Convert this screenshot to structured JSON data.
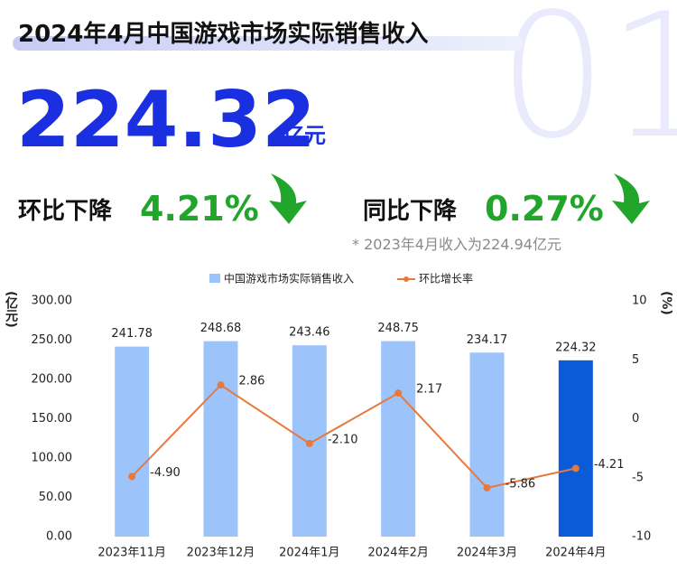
{
  "header": {
    "title": "2024年4月中国游戏市场实际销售收入",
    "big_number": "224.32",
    "unit": "亿元",
    "mom_label": "环比下降",
    "mom_value": "4.21%",
    "yoy_label": "同比下降",
    "yoy_value": "0.27%",
    "note": "* 2023年4月收入为224.94亿元",
    "watermark": "01"
  },
  "chart_data": {
    "type": "bar-line",
    "categories": [
      "2023年11月",
      "2023年12月",
      "2024年1月",
      "2024年2月",
      "2024年3月",
      "2024年4月"
    ],
    "series": [
      {
        "name": "中国游戏市场实际销售收入",
        "color": "#9dc3fb",
        "colors": [
          "#9dc3fb",
          "#9dc3fb",
          "#9dc3fb",
          "#9dc3fb",
          "#9dc3fb",
          "#0b5bd9"
        ],
        "values": [
          241.78,
          248.68,
          243.46,
          248.75,
          234.17,
          224.32
        ]
      },
      {
        "name": "环比增长率",
        "color": "#e8793c",
        "axis": "y2",
        "values": [
          -4.9,
          2.86,
          -2.1,
          2.17,
          -5.86,
          -4.21
        ],
        "value_labels": [
          "-4.90",
          "2.86",
          "-2.10",
          "2.17",
          "-5.86",
          "-4.21"
        ]
      }
    ],
    "ylabel": "(亿元)",
    "y2label": "(%)",
    "ylim": [
      0,
      300
    ],
    "yticks": [
      {
        "value": 0,
        "label": "0.00"
      },
      {
        "value": 50,
        "label": "50.00"
      },
      {
        "value": 100,
        "label": "100.00"
      },
      {
        "value": 150,
        "label": "150.00"
      },
      {
        "value": 200,
        "label": "200.00"
      },
      {
        "value": 250,
        "label": "250.00"
      },
      {
        "value": 300,
        "label": "300.00"
      }
    ],
    "y2lim": [
      -10,
      10
    ],
    "y2ticks": [
      -10,
      -5,
      0,
      5,
      10
    ]
  }
}
